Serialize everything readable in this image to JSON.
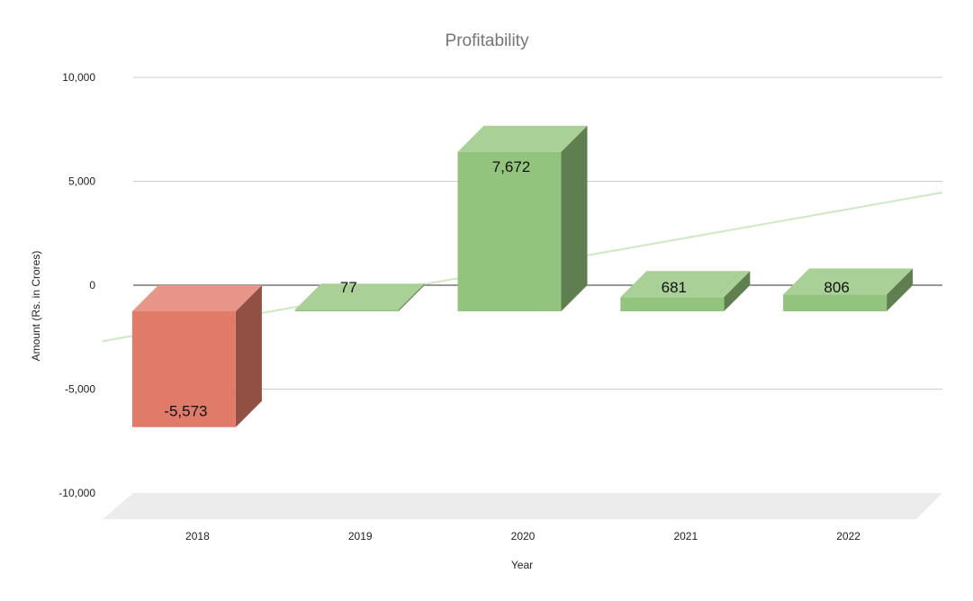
{
  "chart_data": {
    "type": "bar",
    "title": "Profitability",
    "xlabel": "Year",
    "ylabel": "Amount (Rs. in Crores)",
    "categories": [
      "2018",
      "2019",
      "2020",
      "2021",
      "2022"
    ],
    "values": [
      -5573,
      77,
      7672,
      681,
      806
    ],
    "data_labels": [
      "-5,573",
      "77",
      "7,672",
      "681",
      "806"
    ],
    "ylim": [
      -10000,
      10000
    ],
    "yticks": [
      10000,
      5000,
      0,
      -5000,
      -10000
    ],
    "ytick_labels": [
      "10,000",
      "5,000",
      "0",
      "-5,000",
      "-10,000"
    ],
    "grid": true,
    "legend": "none",
    "style": "3d",
    "trendline": {
      "type": "linear",
      "color": "#cfe8c4"
    },
    "colors": {
      "positive": "#93c47d",
      "negative": "#e07b6a",
      "gridline": "#cccccc",
      "zero_line": "#333333",
      "floor": "#ececec"
    }
  }
}
